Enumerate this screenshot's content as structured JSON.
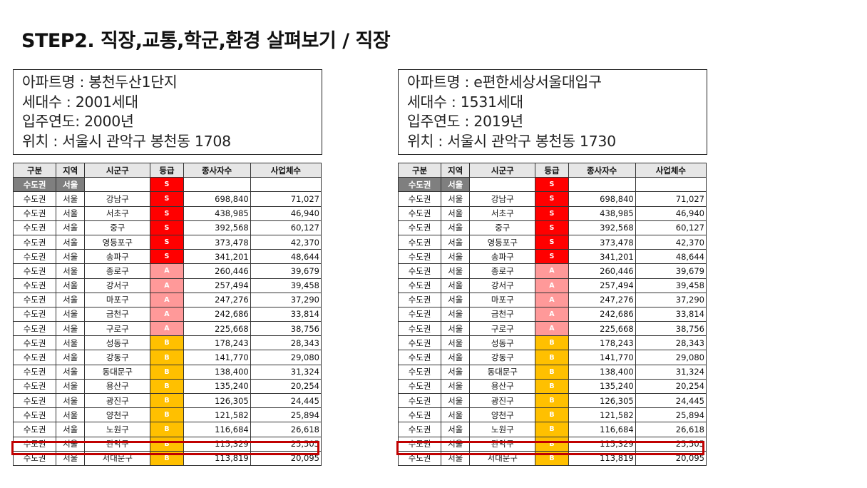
{
  "title": "STEP2. 직장,교통,학군,환경 살펴보기 / 직장",
  "panels": [
    {
      "info": [
        "아파트명 : 봉천두산1단지",
        "세대수 : 2001세대",
        "입주연도: 2000년",
        "위치 : 서울시 관악구 봉천동 1708"
      ]
    },
    {
      "info": [
        "아파트명 : e편한세상서울대입구",
        "세대수 : 1531세대",
        "입주연도 : 2019년",
        "위치 : 서울시 관악구 봉천동 1730"
      ]
    }
  ],
  "table": {
    "headers": [
      "구분",
      "지역",
      "시군구",
      "등급",
      "종사자수",
      "사업체수"
    ],
    "subheader": {
      "region_group": "수도권",
      "region": "서울",
      "grade": "S"
    },
    "highlight_row_index": 17,
    "rows": [
      [
        "수도권",
        "서울",
        "강남구",
        "S",
        "698,840",
        "71,027"
      ],
      [
        "수도권",
        "서울",
        "서초구",
        "S",
        "438,985",
        "46,940"
      ],
      [
        "수도권",
        "서울",
        "중구",
        "S",
        "392,568",
        "60,127"
      ],
      [
        "수도권",
        "서울",
        "영등포구",
        "S",
        "373,478",
        "42,370"
      ],
      [
        "수도권",
        "서울",
        "송파구",
        "S",
        "341,201",
        "48,644"
      ],
      [
        "수도권",
        "서울",
        "종로구",
        "A",
        "260,446",
        "39,679"
      ],
      [
        "수도권",
        "서울",
        "강서구",
        "A",
        "257,494",
        "39,458"
      ],
      [
        "수도권",
        "서울",
        "마포구",
        "A",
        "247,276",
        "37,290"
      ],
      [
        "수도권",
        "서울",
        "금천구",
        "A",
        "242,686",
        "33,814"
      ],
      [
        "수도권",
        "서울",
        "구로구",
        "A",
        "225,668",
        "38,756"
      ],
      [
        "수도권",
        "서울",
        "성동구",
        "B",
        "178,243",
        "28,343"
      ],
      [
        "수도권",
        "서울",
        "강동구",
        "B",
        "141,770",
        "29,080"
      ],
      [
        "수도권",
        "서울",
        "동대문구",
        "B",
        "138,400",
        "31,324"
      ],
      [
        "수도권",
        "서울",
        "용산구",
        "B",
        "135,240",
        "20,254"
      ],
      [
        "수도권",
        "서울",
        "광진구",
        "B",
        "126,305",
        "24,445"
      ],
      [
        "수도권",
        "서울",
        "양천구",
        "B",
        "121,582",
        "25,894"
      ],
      [
        "수도권",
        "서울",
        "노원구",
        "B",
        "116,684",
        "26,618"
      ],
      [
        "수도권",
        "서울",
        "관악구",
        "B",
        "115,329",
        "25,505"
      ],
      [
        "수도권",
        "서울",
        "서대문구",
        "B",
        "113,819",
        "20,095"
      ]
    ]
  },
  "grade_colors": {
    "S": "#ff0000",
    "A": "#ff9999",
    "B": "#ffc000"
  },
  "highlight_color": "#c00000"
}
